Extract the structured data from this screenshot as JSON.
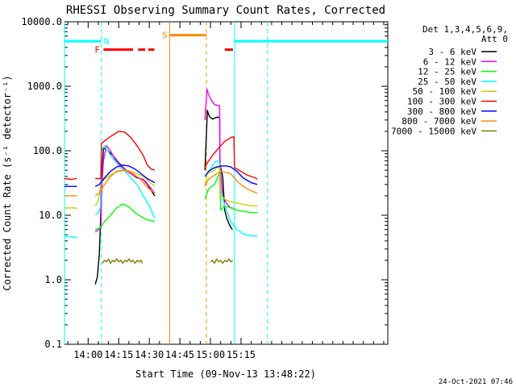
{
  "chart_data": {
    "type": "line",
    "title": "RHESSI Observing Summary Count Rates, Corrected",
    "ylabel": "Corrected Count Rate (s⁻¹ detector⁻¹)",
    "xlabel": "Start Time (09-Nov-13 13:48:22)",
    "yscale": "log",
    "ylim": [
      0.1,
      10000
    ],
    "xlim_min": [
      -11.6,
      147
    ],
    "ytick_labels": [
      "10000.0",
      "1000.0",
      "100.0",
      "10.0",
      "1.0",
      "0.1"
    ],
    "ytick_values": [
      10000,
      1000,
      100,
      10,
      1,
      0.1
    ],
    "xtick_labels": [
      "14:00",
      "14:15",
      "14:30",
      "14:45",
      "15:00",
      "15:15"
    ],
    "xtick_values_min": [
      0,
      15,
      30,
      45,
      60,
      75
    ],
    "timestamp": "24-Oct-2021 07:46",
    "legend": {
      "header1": "Det 1,3,4,5,6,9,",
      "header2": "Att 0",
      "placement": "right"
    },
    "series": [
      {
        "name": "3 - 6 keV",
        "color": "#000000",
        "segments": [
          [
            [
              3.5,
              0.85
            ],
            [
              4.5,
              1.1
            ],
            [
              5.5,
              2.5
            ],
            [
              6.0,
              7
            ],
            [
              6.5,
              20
            ],
            [
              7.0,
              60
            ],
            [
              7.5,
              110
            ],
            [
              9,
              105
            ],
            [
              12,
              85
            ],
            [
              15,
              65
            ],
            [
              18,
              52
            ],
            [
              21,
              44
            ],
            [
              24,
              38
            ],
            [
              27,
              36
            ],
            [
              29,
              30
            ],
            [
              31,
              24
            ],
            [
              32.7,
              20
            ]
          ],
          [
            [
              57.3,
              50
            ],
            [
              58.5,
              420
            ],
            [
              59.5,
              340
            ],
            [
              61,
              310
            ],
            [
              63,
              330
            ],
            [
              64.5,
              330
            ],
            [
              64.7,
              60
            ],
            [
              66,
              40
            ],
            [
              67,
              12
            ],
            [
              68,
              9
            ],
            [
              69,
              7.5
            ],
            [
              70,
              6.5
            ],
            [
              70.8,
              6
            ]
          ]
        ]
      },
      {
        "name": "6 - 12 keV",
        "color": "#ff00ff",
        "segments": [
          [
            [
              3.5,
              5.5
            ],
            [
              5,
              6
            ],
            [
              6.3,
              6.5
            ],
            [
              6.6,
              25
            ],
            [
              7.5,
              70
            ],
            [
              9,
              120
            ],
            [
              11,
              100
            ],
            [
              13,
              75
            ],
            [
              16,
              58
            ],
            [
              19,
              48
            ],
            [
              22,
              42
            ],
            [
              25,
              38
            ],
            [
              28,
              34
            ],
            [
              30,
              28
            ],
            [
              32.7,
              22
            ]
          ],
          [
            [
              57.3,
              300
            ],
            [
              58.3,
              900
            ],
            [
              59,
              750
            ],
            [
              60.5,
              600
            ],
            [
              62,
              520
            ],
            [
              64,
              500
            ],
            [
              64.5,
              500
            ],
            [
              64.7,
              60
            ],
            [
              66,
              20
            ],
            [
              68,
              15
            ],
            [
              70,
              13
            ],
            [
              71,
              13
            ]
          ]
        ]
      },
      {
        "name": "12 - 25 keV",
        "color": "#00ff00",
        "segments": [
          [
            [
              3.5,
              6
            ],
            [
              5,
              6.2
            ],
            [
              6,
              6.5
            ],
            [
              8,
              8
            ],
            [
              11,
              10
            ],
            [
              14,
              13
            ],
            [
              17,
              15
            ],
            [
              20,
              13.5
            ],
            [
              23,
              11
            ],
            [
              26,
              9.5
            ],
            [
              29,
              8.5
            ],
            [
              32.7,
              8
            ]
          ],
          [
            [
              57.3,
              18
            ],
            [
              59,
              25
            ],
            [
              60.5,
              28
            ],
            [
              62,
              30
            ],
            [
              64.5,
              45
            ],
            [
              65,
              12
            ],
            [
              67,
              14
            ],
            [
              70,
              13
            ],
            [
              73,
              12
            ],
            [
              80,
              11
            ],
            [
              83,
              11
            ]
          ]
        ]
      },
      {
        "name": "25 - 50 keV",
        "color": "#00ffff",
        "segments": [
          [
            [
              -11.6,
              4.7
            ],
            [
              -8,
              4.6
            ],
            [
              -6,
              4.5
            ],
            [
              -5.5,
              4.6
            ]
          ],
          [
            [
              3.5,
              10
            ],
            [
              5,
              11
            ],
            [
              6,
              13
            ],
            [
              6.5,
              100
            ],
            [
              8,
              120
            ],
            [
              10,
              95
            ],
            [
              13,
              70
            ],
            [
              16,
              55
            ],
            [
              18,
              48
            ],
            [
              21,
              38
            ],
            [
              24,
              30
            ],
            [
              27,
              20
            ],
            [
              30,
              14
            ],
            [
              32.7,
              9
            ]
          ],
          [
            [
              57.3,
              40
            ],
            [
              59,
              45
            ],
            [
              61,
              60
            ],
            [
              63,
              70
            ],
            [
              64.5,
              65
            ],
            [
              65,
              25
            ],
            [
              67,
              14
            ],
            [
              70,
              8
            ],
            [
              73,
              6
            ],
            [
              77,
              5
            ],
            [
              80,
              4.8
            ],
            [
              83,
              4.8
            ]
          ]
        ]
      },
      {
        "name": "50 - 100 keV",
        "color": "#cccc00",
        "segments": [
          [
            [
              -11.6,
              13
            ],
            [
              -6,
              13
            ],
            [
              -5.5,
              12.5
            ]
          ],
          [
            [
              3.5,
              14
            ],
            [
              5,
              17
            ],
            [
              6.3,
              32
            ],
            [
              9,
              38
            ],
            [
              12,
              44
            ],
            [
              15,
              48
            ],
            [
              18,
              50
            ],
            [
              21,
              48
            ],
            [
              24,
              44
            ],
            [
              27,
              40
            ],
            [
              30,
              33
            ],
            [
              32.7,
              28
            ]
          ],
          [
            [
              57.3,
              28
            ],
            [
              58.5,
              45
            ],
            [
              61,
              48
            ],
            [
              63,
              55
            ],
            [
              64.5,
              55
            ],
            [
              65,
              20
            ],
            [
              68,
              17
            ],
            [
              71,
              16
            ],
            [
              75,
              15
            ],
            [
              80,
              14
            ],
            [
              83,
              14
            ]
          ]
        ]
      },
      {
        "name": "100 - 300 keV",
        "color": "#ff0000",
        "segments": [
          [
            [
              -11.6,
              37
            ],
            [
              -8,
              36
            ],
            [
              -6,
              37
            ],
            [
              -5.5,
              37
            ]
          ],
          [
            [
              3.5,
              37
            ],
            [
              5.5,
              37
            ],
            [
              6.2,
              37
            ],
            [
              6.5,
              130
            ],
            [
              9,
              150
            ],
            [
              12,
              175
            ],
            [
              15,
              200
            ],
            [
              18,
              195
            ],
            [
              21,
              160
            ],
            [
              24,
              120
            ],
            [
              27,
              85
            ],
            [
              29,
              60
            ],
            [
              31,
              52
            ],
            [
              32.7,
              50
            ]
          ],
          [
            [
              57.3,
              55
            ],
            [
              58.5,
              65
            ],
            [
              61,
              85
            ],
            [
              64,
              110
            ],
            [
              67,
              140
            ],
            [
              70,
              160
            ],
            [
              71.5,
              165
            ],
            [
              71.8,
              55
            ],
            [
              74,
              50
            ],
            [
              78,
              42
            ],
            [
              82,
              38
            ],
            [
              83,
              36
            ]
          ]
        ]
      },
      {
        "name": "300 - 800 keV",
        "color": "#0000ff",
        "segments": [
          [
            [
              -11.6,
              28
            ],
            [
              -8,
              28
            ],
            [
              -6,
              28
            ],
            [
              -5.5,
              28
            ]
          ],
          [
            [
              3.5,
              28
            ],
            [
              5.5,
              30
            ],
            [
              8,
              38
            ],
            [
              11,
              48
            ],
            [
              14,
              56
            ],
            [
              17,
              60
            ],
            [
              20,
              58
            ],
            [
              23,
              52
            ],
            [
              26,
              44
            ],
            [
              29,
              37
            ],
            [
              32.7,
              32
            ]
          ],
          [
            [
              57.3,
              40
            ],
            [
              59,
              48
            ],
            [
              62,
              55
            ],
            [
              65,
              58
            ],
            [
              68,
              58
            ],
            [
              70,
              56
            ],
            [
              73,
              48
            ],
            [
              76,
              38
            ],
            [
              80,
              32
            ],
            [
              83,
              30
            ]
          ]
        ]
      },
      {
        "name": "800 - 7000 keV",
        "color": "#ff8c00",
        "segments": [
          [
            [
              -11.6,
              20
            ],
            [
              -8,
              20
            ],
            [
              -6,
              20
            ],
            [
              -5.5,
              20
            ]
          ],
          [
            [
              3.5,
              20
            ],
            [
              5.5,
              22
            ],
            [
              8,
              30
            ],
            [
              11,
              40
            ],
            [
              14,
              48
            ],
            [
              17,
              50
            ],
            [
              20,
              48
            ],
            [
              23,
              42
            ],
            [
              26,
              35
            ],
            [
              29,
              27
            ],
            [
              32.7,
              22
            ]
          ],
          [
            [
              57.3,
              28
            ],
            [
              59,
              36
            ],
            [
              62,
              42
            ],
            [
              65,
              48
            ],
            [
              68,
              46
            ],
            [
              70,
              44
            ],
            [
              73,
              34
            ],
            [
              76,
              28
            ],
            [
              80,
              24
            ],
            [
              83,
              22
            ]
          ]
        ]
      },
      {
        "name": "7000 - 15000 keV",
        "color": "#808000",
        "segments": [
          [
            [
              7,
              1.8
            ],
            [
              8,
              2.0
            ],
            [
              9,
              1.9
            ],
            [
              10,
              2.1
            ],
            [
              11,
              1.8
            ],
            [
              12,
              2.0
            ],
            [
              13,
              1.9
            ],
            [
              14,
              2.1
            ],
            [
              15,
              1.9
            ],
            [
              16,
              2.0
            ],
            [
              17,
              1.8
            ],
            [
              18,
              2.0
            ],
            [
              19,
              1.9
            ],
            [
              20,
              2.1
            ],
            [
              21,
              1.9
            ],
            [
              22,
              2.0
            ],
            [
              23,
              1.8
            ],
            [
              24,
              2.0
            ],
            [
              25,
              1.9
            ],
            [
              26,
              2.0
            ],
            [
              26.5,
              1.8
            ]
          ],
          [
            [
              60,
              1.9
            ],
            [
              61,
              2.0
            ],
            [
              62,
              1.8
            ],
            [
              63,
              2.1
            ],
            [
              64,
              1.9
            ],
            [
              65,
              2.0
            ],
            [
              66,
              1.8
            ],
            [
              67,
              2.0
            ],
            [
              68,
              1.9
            ],
            [
              69,
              2.1
            ],
            [
              70,
              1.9
            ],
            [
              71,
              2.0
            ]
          ]
        ]
      }
    ],
    "annotations": {
      "flag_F": "F",
      "flag_N": "N",
      "flag_S": "S"
    }
  }
}
